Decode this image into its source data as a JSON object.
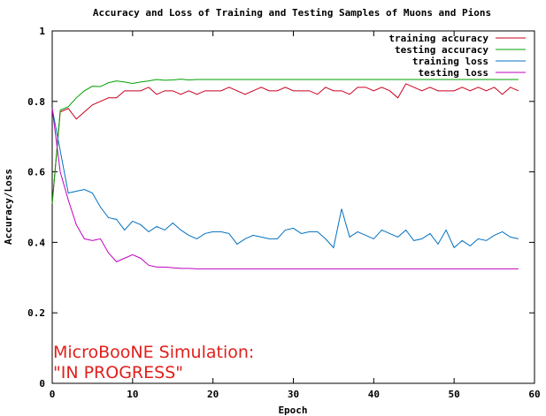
{
  "chart_data": {
    "type": "line",
    "title": "Accuracy and Loss of Training and Testing Samples of Muons and Pions",
    "xlabel": "Epoch",
    "ylabel": "Accuracy/Loss",
    "xlim": [
      0,
      60
    ],
    "ylim": [
      0,
      1
    ],
    "x_ticks": [
      0,
      10,
      20,
      30,
      40,
      50,
      60
    ],
    "y_ticks": [
      0,
      0.2,
      0.4,
      0.6,
      0.8,
      1
    ],
    "x_tick_labels": [
      "0",
      "10",
      "20",
      "30",
      "40",
      "50",
      "60"
    ],
    "y_tick_labels": [
      "0",
      "0.2",
      "0.4",
      "0.6",
      "0.8",
      "1"
    ],
    "grid": false,
    "legend_position": "top-right",
    "annotation": {
      "line1": "MicroBooNE Simulation:",
      "line2": "\"IN PROGRESS\"",
      "color": "#e0201c"
    },
    "x": [
      0,
      1,
      2,
      3,
      4,
      5,
      6,
      7,
      8,
      9,
      10,
      11,
      12,
      13,
      14,
      15,
      16,
      17,
      18,
      19,
      20,
      21,
      22,
      23,
      24,
      25,
      26,
      27,
      28,
      29,
      30,
      31,
      32,
      33,
      34,
      35,
      36,
      37,
      38,
      39,
      40,
      41,
      42,
      43,
      44,
      45,
      46,
      47,
      48,
      49,
      50,
      51,
      52,
      53,
      54,
      55,
      56,
      57,
      58
    ],
    "series": [
      {
        "name": "training accuracy",
        "color": "#c8001e",
        "values": [
          0.51,
          0.77,
          0.78,
          0.75,
          0.77,
          0.79,
          0.8,
          0.81,
          0.81,
          0.83,
          0.83,
          0.83,
          0.84,
          0.82,
          0.83,
          0.83,
          0.82,
          0.83,
          0.82,
          0.83,
          0.83,
          0.83,
          0.84,
          0.83,
          0.82,
          0.83,
          0.84,
          0.83,
          0.83,
          0.84,
          0.83,
          0.83,
          0.83,
          0.82,
          0.84,
          0.83,
          0.83,
          0.82,
          0.84,
          0.84,
          0.83,
          0.84,
          0.83,
          0.81,
          0.85,
          0.84,
          0.83,
          0.84,
          0.83,
          0.83,
          0.83,
          0.84,
          0.83,
          0.84,
          0.83,
          0.84,
          0.82,
          0.84,
          0.83
        ]
      },
      {
        "name": "testing accuracy",
        "color": "#00a000",
        "values": [
          0.51,
          0.775,
          0.785,
          0.81,
          0.83,
          0.843,
          0.842,
          0.853,
          0.858,
          0.855,
          0.851,
          0.855,
          0.858,
          0.862,
          0.86,
          0.861,
          0.863,
          0.861,
          0.862,
          0.862,
          0.862,
          0.862,
          0.862,
          0.862,
          0.862,
          0.862,
          0.862,
          0.862,
          0.862,
          0.862,
          0.862,
          0.862,
          0.862,
          0.862,
          0.862,
          0.862,
          0.862,
          0.862,
          0.862,
          0.862,
          0.862,
          0.862,
          0.862,
          0.862,
          0.862,
          0.862,
          0.862,
          0.862,
          0.862,
          0.862,
          0.862,
          0.862,
          0.862,
          0.862,
          0.862,
          0.862,
          0.862,
          0.862,
          0.862
        ]
      },
      {
        "name": "training loss",
        "color": "#0070c0",
        "values": [
          0.78,
          0.66,
          0.54,
          0.545,
          0.55,
          0.54,
          0.5,
          0.47,
          0.465,
          0.435,
          0.46,
          0.45,
          0.43,
          0.445,
          0.435,
          0.455,
          0.435,
          0.42,
          0.41,
          0.425,
          0.43,
          0.43,
          0.425,
          0.395,
          0.41,
          0.42,
          0.415,
          0.41,
          0.41,
          0.435,
          0.44,
          0.425,
          0.43,
          0.43,
          0.41,
          0.385,
          0.495,
          0.415,
          0.43,
          0.42,
          0.41,
          0.435,
          0.425,
          0.415,
          0.435,
          0.405,
          0.41,
          0.425,
          0.395,
          0.435,
          0.385,
          0.405,
          0.39,
          0.41,
          0.405,
          0.42,
          0.43,
          0.415,
          0.41
        ]
      },
      {
        "name": "testing loss",
        "color": "#c000c0",
        "values": [
          0.78,
          0.6,
          0.52,
          0.45,
          0.41,
          0.405,
          0.41,
          0.37,
          0.345,
          0.355,
          0.365,
          0.355,
          0.335,
          0.33,
          0.33,
          0.328,
          0.326,
          0.326,
          0.325,
          0.325,
          0.325,
          0.325,
          0.325,
          0.325,
          0.325,
          0.325,
          0.325,
          0.325,
          0.325,
          0.325,
          0.325,
          0.325,
          0.325,
          0.325,
          0.325,
          0.325,
          0.325,
          0.325,
          0.325,
          0.325,
          0.325,
          0.325,
          0.325,
          0.325,
          0.325,
          0.325,
          0.325,
          0.325,
          0.325,
          0.325,
          0.325,
          0.325,
          0.325,
          0.325,
          0.325,
          0.325,
          0.325,
          0.325,
          0.325
        ]
      }
    ]
  }
}
